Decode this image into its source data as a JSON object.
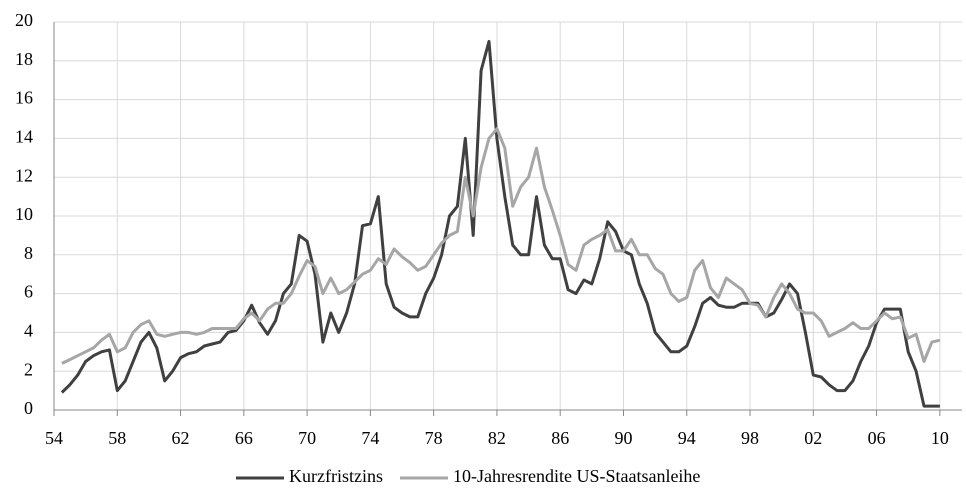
{
  "chart_data": {
    "type": "line",
    "x": [
      1954.5,
      1955,
      1955.5,
      1956,
      1956.5,
      1957,
      1957.5,
      1958,
      1958.5,
      1959,
      1959.5,
      1960,
      1960.5,
      1961,
      1961.5,
      1962,
      1962.5,
      1963,
      1963.5,
      1964,
      1964.5,
      1965,
      1965.5,
      1966,
      1966.5,
      1967,
      1967.5,
      1968,
      1968.5,
      1969,
      1969.5,
      1970,
      1970.5,
      1971,
      1971.5,
      1972,
      1972.5,
      1973,
      1973.5,
      1974,
      1974.5,
      1975,
      1975.5,
      1976,
      1976.5,
      1977,
      1977.5,
      1978,
      1978.5,
      1979,
      1979.5,
      1980,
      1980.5,
      1981,
      1981.5,
      1982,
      1982.5,
      1983,
      1983.5,
      1984,
      1984.5,
      1985,
      1985.5,
      1986,
      1986.5,
      1987,
      1987.5,
      1988,
      1988.5,
      1989,
      1989.5,
      1990,
      1990.5,
      1991,
      1991.5,
      1992,
      1992.5,
      1993,
      1993.5,
      1994,
      1994.5,
      1995,
      1995.5,
      1996,
      1996.5,
      1997,
      1997.5,
      1998,
      1998.5,
      1999,
      1999.5,
      2000,
      2000.5,
      2001,
      2001.5,
      2002,
      2002.5,
      2003,
      2003.5,
      2004,
      2004.5,
      2005,
      2005.5,
      2006,
      2006.5,
      2007,
      2007.5,
      2008,
      2008.5,
      2009,
      2009.5,
      2010
    ],
    "series": [
      {
        "name": "Kurzfristzins",
        "color": "#404040",
        "values": [
          0.9,
          1.3,
          1.8,
          2.5,
          2.8,
          3.0,
          3.1,
          1.0,
          1.5,
          2.5,
          3.5,
          4.0,
          3.2,
          1.5,
          2.0,
          2.7,
          2.9,
          3.0,
          3.3,
          3.4,
          3.5,
          4.0,
          4.1,
          4.6,
          5.4,
          4.5,
          3.9,
          4.6,
          6.0,
          6.5,
          9.0,
          8.7,
          7.0,
          3.5,
          5.0,
          4.0,
          5.0,
          6.5,
          9.5,
          9.6,
          11.0,
          6.5,
          5.3,
          5.0,
          4.8,
          4.8,
          6.0,
          6.8,
          8.0,
          10.0,
          10.5,
          14.0,
          9.0,
          17.5,
          19.0,
          14.0,
          11.0,
          8.5,
          8.0,
          8.0,
          11.0,
          8.5,
          7.8,
          7.8,
          6.2,
          6.0,
          6.7,
          6.5,
          7.8,
          9.7,
          9.2,
          8.2,
          8.0,
          6.5,
          5.5,
          4.0,
          3.5,
          3.0,
          3.0,
          3.3,
          4.3,
          5.5,
          5.8,
          5.4,
          5.3,
          5.3,
          5.5,
          5.5,
          5.5,
          4.8,
          5.0,
          5.7,
          6.5,
          6.0,
          4.0,
          1.8,
          1.7,
          1.3,
          1.0,
          1.0,
          1.5,
          2.5,
          3.3,
          4.5,
          5.2,
          5.2,
          5.2,
          3.0,
          2.0,
          0.2,
          0.2,
          0.2
        ]
      },
      {
        "name": "10-Jahresrendite US-Staatsanleihe",
        "color": "#a6a6a6",
        "values": [
          2.4,
          2.6,
          2.8,
          3.0,
          3.2,
          3.6,
          3.9,
          3.0,
          3.2,
          4.0,
          4.4,
          4.6,
          3.9,
          3.8,
          3.9,
          4.0,
          4.0,
          3.9,
          4.0,
          4.2,
          4.2,
          4.2,
          4.2,
          4.7,
          5.0,
          4.6,
          5.2,
          5.5,
          5.5,
          6.0,
          6.9,
          7.7,
          7.4,
          6.0,
          6.8,
          6.0,
          6.2,
          6.6,
          7.0,
          7.2,
          7.8,
          7.5,
          8.3,
          7.9,
          7.6,
          7.2,
          7.4,
          8.0,
          8.6,
          9.0,
          9.2,
          12.0,
          10.0,
          12.5,
          14.0,
          14.5,
          13.5,
          10.5,
          11.5,
          12.0,
          13.5,
          11.5,
          10.3,
          9.0,
          7.5,
          7.2,
          8.5,
          8.8,
          9.0,
          9.3,
          8.2,
          8.2,
          8.8,
          8.0,
          8.0,
          7.3,
          7.0,
          6.0,
          5.6,
          5.8,
          7.2,
          7.7,
          6.3,
          5.8,
          6.8,
          6.5,
          6.2,
          5.5,
          5.4,
          4.8,
          5.8,
          6.5,
          6.0,
          5.2,
          5.0,
          5.0,
          4.6,
          3.8,
          4.0,
          4.2,
          4.5,
          4.2,
          4.2,
          4.6,
          5.0,
          4.7,
          4.8,
          3.7,
          3.9,
          2.5,
          3.5,
          3.6
        ]
      }
    ],
    "xlim": [
      1954,
      2011.4
    ],
    "xticks": [
      {
        "value": 1954,
        "label": "54"
      },
      {
        "value": 1958,
        "label": "58"
      },
      {
        "value": 1962,
        "label": "62"
      },
      {
        "value": 1966,
        "label": "66"
      },
      {
        "value": 1970,
        "label": "70"
      },
      {
        "value": 1974,
        "label": "74"
      },
      {
        "value": 1978,
        "label": "78"
      },
      {
        "value": 1982,
        "label": "82"
      },
      {
        "value": 1986,
        "label": "86"
      },
      {
        "value": 1990,
        "label": "90"
      },
      {
        "value": 1994,
        "label": "94"
      },
      {
        "value": 1998,
        "label": "98"
      },
      {
        "value": 2002,
        "label": "02"
      },
      {
        "value": 2006,
        "label": "06"
      },
      {
        "value": 2010,
        "label": "10"
      }
    ],
    "ylim": [
      0,
      20
    ],
    "yticks": [
      0,
      2,
      4,
      6,
      8,
      10,
      12,
      14,
      16,
      18,
      20
    ],
    "grid": true,
    "legend": "bottom"
  }
}
